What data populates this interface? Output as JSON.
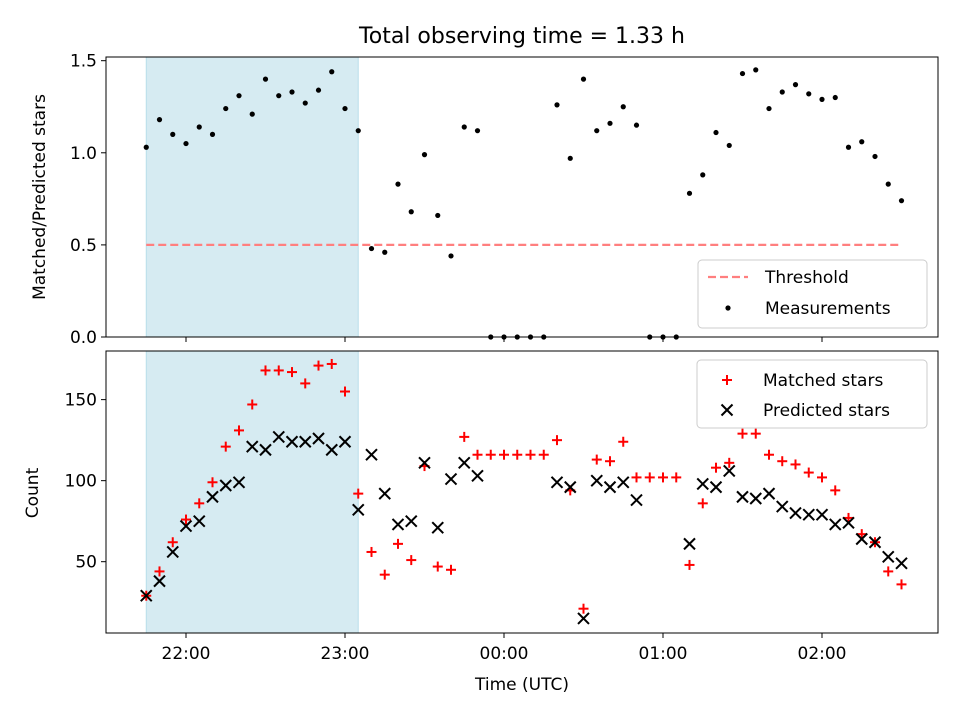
{
  "chart_data": [
    {
      "type": "scatter",
      "title": "Total observing time = 1.33 h",
      "ylabel": "Matched/Predicted stars",
      "ylim": [
        0,
        1.52
      ],
      "yticks": [
        0,
        0.5,
        1.0,
        1.5
      ],
      "ytick_labels": [
        "0.0",
        "0.5",
        "1.0",
        "1.5"
      ],
      "shaded_region": {
        "x_start": "21:45",
        "x_end": "23:05",
        "color": "#add8e6"
      },
      "threshold": {
        "name": "Threshold",
        "value": 0.5,
        "x_start": "21:45",
        "x_end": "02:30",
        "color": "#ff7f7f",
        "style": "dashed"
      },
      "series": [
        {
          "name": "Measurements",
          "color": "#000000",
          "marker": "dot",
          "points": [
            [
              "21:45",
              1.03
            ],
            [
              "21:50",
              1.18
            ],
            [
              "21:55",
              1.1
            ],
            [
              "22:00",
              1.05
            ],
            [
              "22:05",
              1.14
            ],
            [
              "22:10",
              1.1
            ],
            [
              "22:15",
              1.24
            ],
            [
              "22:20",
              1.31
            ],
            [
              "22:25",
              1.21
            ],
            [
              "22:30",
              1.4
            ],
            [
              "22:35",
              1.31
            ],
            [
              "22:40",
              1.33
            ],
            [
              "22:45",
              1.27
            ],
            [
              "22:50",
              1.34
            ],
            [
              "22:55",
              1.44
            ],
            [
              "23:00",
              1.24
            ],
            [
              "23:05",
              1.12
            ],
            [
              "23:10",
              0.48
            ],
            [
              "23:15",
              0.46
            ],
            [
              "23:20",
              0.83
            ],
            [
              "23:25",
              0.68
            ],
            [
              "23:30",
              0.99
            ],
            [
              "23:35",
              0.66
            ],
            [
              "23:40",
              0.44
            ],
            [
              "23:45",
              1.14
            ],
            [
              "23:50",
              1.12
            ],
            [
              "23:55",
              0.0
            ],
            [
              "00:00",
              0.0
            ],
            [
              "00:05",
              0.0
            ],
            [
              "00:10",
              0.0
            ],
            [
              "00:15",
              0.0
            ],
            [
              "00:20",
              1.26
            ],
            [
              "00:25",
              0.97
            ],
            [
              "00:30",
              1.4
            ],
            [
              "00:35",
              1.12
            ],
            [
              "00:40",
              1.16
            ],
            [
              "00:45",
              1.25
            ],
            [
              "00:50",
              1.15
            ],
            [
              "00:55",
              0.0
            ],
            [
              "01:00",
              0.0
            ],
            [
              "01:05",
              0.0
            ],
            [
              "01:10",
              0.78
            ],
            [
              "01:15",
              0.88
            ],
            [
              "01:20",
              1.11
            ],
            [
              "01:25",
              1.04
            ],
            [
              "01:30",
              1.43
            ],
            [
              "01:35",
              1.45
            ],
            [
              "01:40",
              1.24
            ],
            [
              "01:45",
              1.33
            ],
            [
              "01:50",
              1.37
            ],
            [
              "01:55",
              1.32
            ],
            [
              "02:00",
              1.29
            ],
            [
              "02:05",
              1.3
            ],
            [
              "02:10",
              1.03
            ],
            [
              "02:15",
              1.06
            ],
            [
              "02:20",
              0.98
            ],
            [
              "02:25",
              0.83
            ],
            [
              "02:30",
              0.74
            ]
          ]
        }
      ],
      "legend": {
        "placement": "lower-right",
        "entries": [
          "Threshold",
          "Measurements"
        ]
      }
    },
    {
      "type": "scatter",
      "xlabel": "Time (UTC)",
      "ylabel": "Count",
      "ylim": [
        6,
        180
      ],
      "yticks": [
        50,
        100,
        150
      ],
      "ytick_labels": [
        "50",
        "100",
        "150"
      ],
      "x_tick_labels": [
        "22:00",
        "23:00",
        "00:00",
        "01:00",
        "02:00"
      ],
      "shaded_region": {
        "x_start": "21:45",
        "x_end": "23:05",
        "color": "#add8e6"
      },
      "series": [
        {
          "name": "Matched stars",
          "color": "#ff0000",
          "marker": "plus",
          "points": [
            [
              "21:45",
              29
            ],
            [
              "21:50",
              44
            ],
            [
              "21:55",
              62
            ],
            [
              "22:00",
              76
            ],
            [
              "22:05",
              86
            ],
            [
              "22:10",
              99
            ],
            [
              "22:15",
              121
            ],
            [
              "22:20",
              131
            ],
            [
              "22:25",
              147
            ],
            [
              "22:30",
              168
            ],
            [
              "22:35",
              168
            ],
            [
              "22:40",
              167
            ],
            [
              "22:45",
              160
            ],
            [
              "22:50",
              171
            ],
            [
              "22:55",
              172
            ],
            [
              "23:00",
              155
            ],
            [
              "23:05",
              92
            ],
            [
              "23:10",
              56
            ],
            [
              "23:15",
              42
            ],
            [
              "23:20",
              61
            ],
            [
              "23:25",
              51
            ],
            [
              "23:30",
              109
            ],
            [
              "23:35",
              47
            ],
            [
              "23:40",
              45
            ],
            [
              "23:45",
              127
            ],
            [
              "23:50",
              116
            ],
            [
              "23:55",
              116
            ],
            [
              "00:00",
              116
            ],
            [
              "00:05",
              116
            ],
            [
              "00:10",
              116
            ],
            [
              "00:15",
              116
            ],
            [
              "00:20",
              125
            ],
            [
              "00:25",
              94
            ],
            [
              "00:30",
              21
            ],
            [
              "00:35",
              113
            ],
            [
              "00:40",
              112
            ],
            [
              "00:45",
              124
            ],
            [
              "00:50",
              102
            ],
            [
              "00:55",
              102
            ],
            [
              "01:00",
              102
            ],
            [
              "01:05",
              102
            ],
            [
              "01:10",
              48
            ],
            [
              "01:15",
              86
            ],
            [
              "01:20",
              108
            ],
            [
              "01:25",
              111
            ],
            [
              "01:30",
              129
            ],
            [
              "01:35",
              129
            ],
            [
              "01:40",
              116
            ],
            [
              "01:45",
              112
            ],
            [
              "01:50",
              110
            ],
            [
              "01:55",
              105
            ],
            [
              "02:00",
              102
            ],
            [
              "02:05",
              94
            ],
            [
              "02:10",
              77
            ],
            [
              "02:15",
              67
            ],
            [
              "02:20",
              62
            ],
            [
              "02:25",
              44
            ],
            [
              "02:30",
              36
            ]
          ]
        },
        {
          "name": "Predicted stars",
          "color": "#000000",
          "marker": "x",
          "points": [
            [
              "21:45",
              29
            ],
            [
              "21:50",
              38
            ],
            [
              "21:55",
              56
            ],
            [
              "22:00",
              72
            ],
            [
              "22:05",
              75
            ],
            [
              "22:10",
              90
            ],
            [
              "22:15",
              97
            ],
            [
              "22:20",
              99
            ],
            [
              "22:25",
              121
            ],
            [
              "22:30",
              119
            ],
            [
              "22:35",
              127
            ],
            [
              "22:40",
              124
            ],
            [
              "22:45",
              124
            ],
            [
              "22:50",
              126
            ],
            [
              "22:55",
              119
            ],
            [
              "23:00",
              124
            ],
            [
              "23:05",
              82
            ],
            [
              "23:10",
              116
            ],
            [
              "23:15",
              92
            ],
            [
              "23:20",
              73
            ],
            [
              "23:25",
              75
            ],
            [
              "23:30",
              111
            ],
            [
              "23:35",
              71
            ],
            [
              "23:40",
              101
            ],
            [
              "23:45",
              111
            ],
            [
              "23:50",
              103
            ],
            [
              "00:20",
              99
            ],
            [
              "00:25",
              96
            ],
            [
              "00:30",
              15
            ],
            [
              "00:35",
              100
            ],
            [
              "00:40",
              96
            ],
            [
              "00:45",
              99
            ],
            [
              "00:50",
              88
            ],
            [
              "01:10",
              61
            ],
            [
              "01:15",
              98
            ],
            [
              "01:20",
              96
            ],
            [
              "01:25",
              106
            ],
            [
              "01:30",
              90
            ],
            [
              "01:35",
              89
            ],
            [
              "01:40",
              92
            ],
            [
              "01:45",
              84
            ],
            [
              "01:50",
              80
            ],
            [
              "01:55",
              79
            ],
            [
              "02:00",
              79
            ],
            [
              "02:05",
              73
            ],
            [
              "02:10",
              74
            ],
            [
              "02:15",
              64
            ],
            [
              "02:20",
              62
            ],
            [
              "02:25",
              53
            ],
            [
              "02:30",
              49
            ]
          ]
        }
      ],
      "legend": {
        "placement": "top-right",
        "entries": [
          "Matched stars",
          "Predicted stars"
        ]
      }
    }
  ]
}
